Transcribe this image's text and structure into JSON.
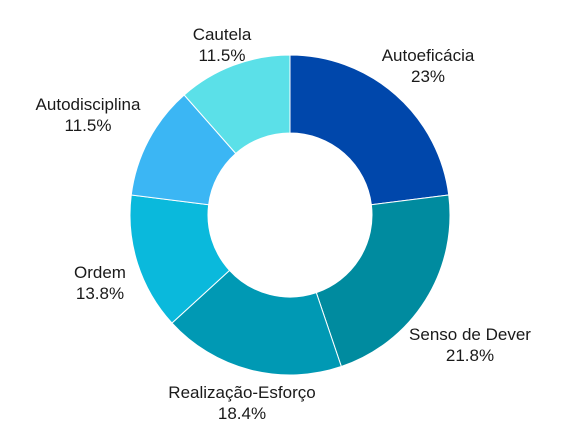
{
  "chart_data": {
    "type": "pie",
    "donut": true,
    "start": "top",
    "direction": "clockwise",
    "slices": [
      {
        "label": "Autoeficácia",
        "percent_label": "23%",
        "value": 23,
        "color": "#0047ab"
      },
      {
        "label": "Senso de Dever",
        "percent_label": "21.8%",
        "value": 21.8,
        "color": "#008b9f"
      },
      {
        "label": "Realização-Esforço",
        "percent_label": "18.4%",
        "value": 18.4,
        "color": "#0099b4"
      },
      {
        "label": "Ordem",
        "percent_label": "13.8%",
        "value": 13.8,
        "color": "#0ab9dc"
      },
      {
        "label": "Autodisciplina",
        "percent_label": "11.5%",
        "value": 11.5,
        "color": "#3bb6f4"
      },
      {
        "label": "Cautela",
        "percent_label": "11.5%",
        "value": 11.5,
        "color": "#5be0e8"
      }
    ]
  }
}
